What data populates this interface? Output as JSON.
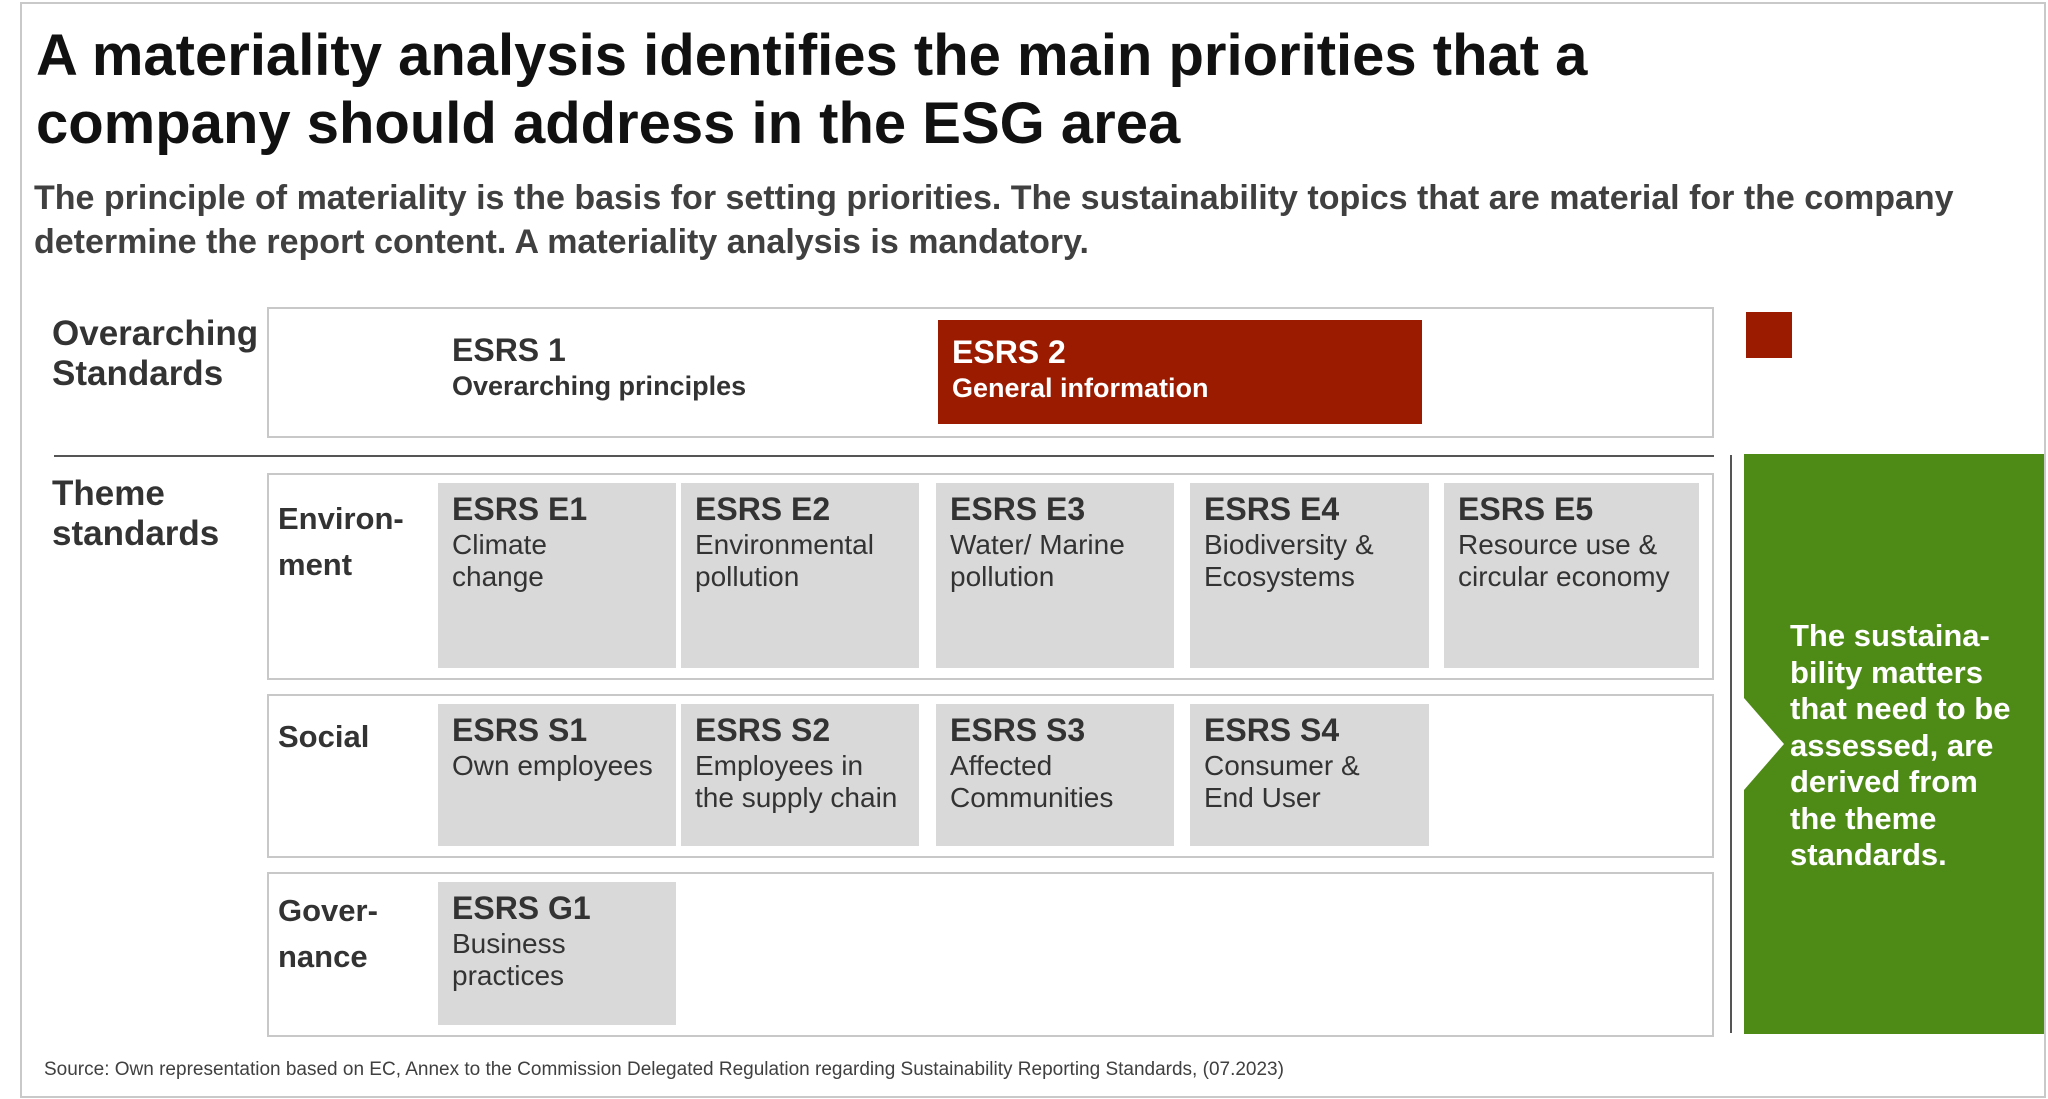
{
  "title": "A materiality analysis identifies the main priorities that a company should address in the ESG area",
  "subtitle": "The principle of materiality is the basis for setting priorities. The sustainability topics that are material for the company determine the report content. A materiality analysis is mandatory.",
  "overarching": {
    "label": "Overarching Standards",
    "esrs1": {
      "code": "ESRS 1",
      "name": "Overarching principles"
    },
    "esrs2": {
      "code": "ESRS 2",
      "name": "General information"
    }
  },
  "theme": {
    "label": "Theme standards",
    "environment": {
      "label": "Environ-\nment",
      "tiles": [
        {
          "code": "ESRS E1",
          "name": "Climate\nchange"
        },
        {
          "code": "ESRS E2",
          "name": "Environmental\npollution"
        },
        {
          "code": "ESRS E3",
          "name": "Water/ Marine\npollution"
        },
        {
          "code": "ESRS E4",
          "name": "Biodiversity &\nEcosystems"
        },
        {
          "code": "ESRS E5",
          "name": "Resource use &\ncircular economy"
        }
      ]
    },
    "social": {
      "label": "Social",
      "tiles": [
        {
          "code": "ESRS S1",
          "name": "Own employees"
        },
        {
          "code": "ESRS S2",
          "name": "Employees in\nthe supply chain"
        },
        {
          "code": "ESRS S3",
          "name": "Affected\nCommunities"
        },
        {
          "code": "ESRS S4",
          "name": "Consumer &\nEnd User"
        }
      ]
    },
    "governance": {
      "label": "Gover-\nnance",
      "tiles": [
        {
          "code": "ESRS G1",
          "name": "Business\npractices"
        }
      ]
    }
  },
  "callout": "The sustaina-\nbility matters\nthat need to be\nassessed, are\nderived from\nthe theme\nstandards.",
  "colors": {
    "accent_red": "#9b1b00",
    "accent_green": "#4e8a16",
    "tile_gray": "#d9d9d9"
  },
  "source": "Source: Own representation based on EC, Annex to the Commission Delegated Regulation regarding Sustainability Reporting Standards, (07.2023)"
}
